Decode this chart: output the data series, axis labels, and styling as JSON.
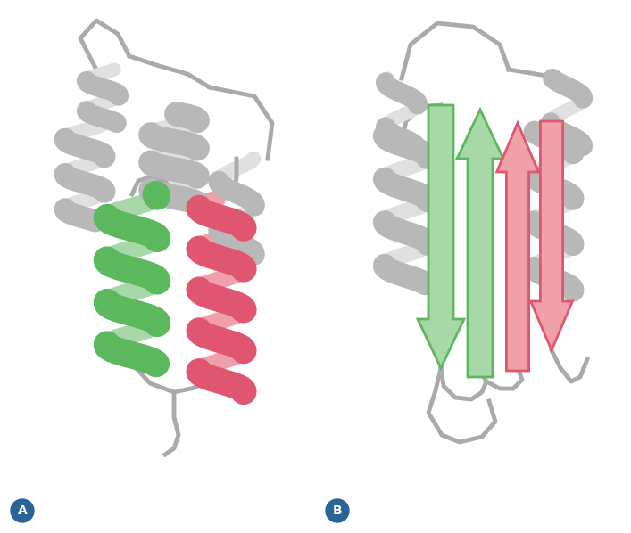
{
  "background_color": "#ffffff",
  "gray_main": "#b8b8b8",
  "gray_light": "#e0e0e0",
  "gray_dark": "#909090",
  "gray_edge": "#888888",
  "green_main": "#5cb85c",
  "green_light": "#a8d8a8",
  "green_edge": "#2d7a2d",
  "red_main": "#e05570",
  "red_light": "#f0a0a8",
  "red_edge": "#a02030",
  "loop_color": "#aaaaaa",
  "loop_lw": 3.5,
  "label_bg": "#2a6496",
  "label_fg": "#ffffff"
}
